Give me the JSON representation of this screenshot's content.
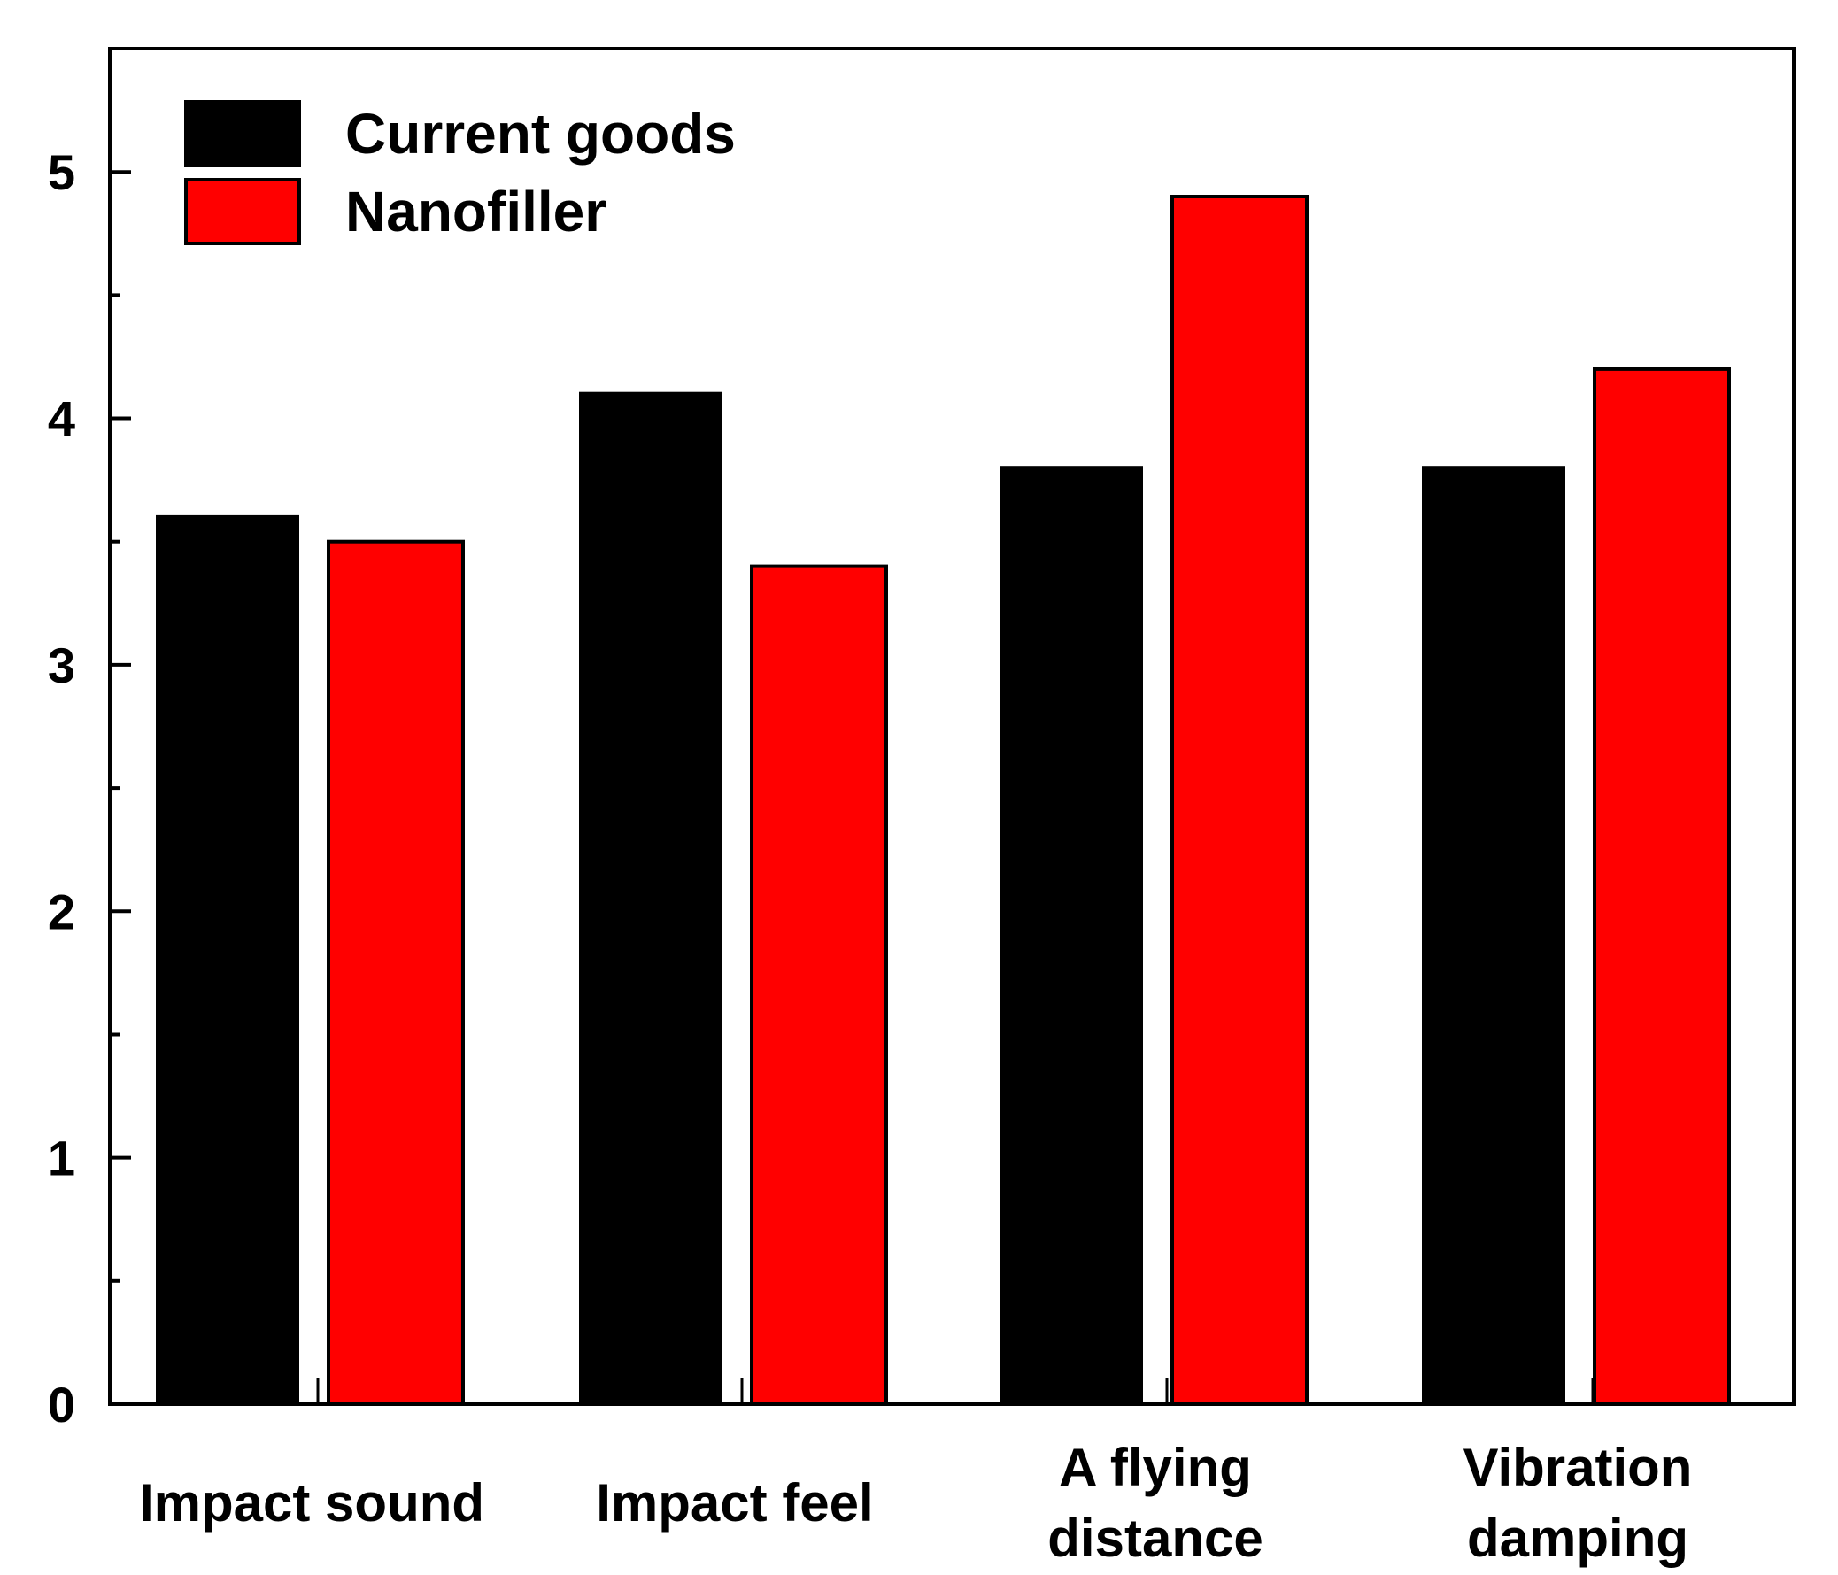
{
  "chart_data": {
    "type": "bar",
    "title": "",
    "xlabel": "",
    "ylabel": "",
    "categories": [
      [
        "Impact sound"
      ],
      [
        "Impact feel"
      ],
      [
        "A flying",
        "distance"
      ],
      [
        "Vibration",
        "damping"
      ]
    ],
    "series": [
      {
        "name": "Current goods",
        "color": "#000000",
        "values": [
          3.6,
          4.1,
          3.8,
          3.8
        ]
      },
      {
        "name": "Nanofiller",
        "color": "#ff0000",
        "values": [
          3.5,
          3.4,
          4.9,
          4.2
        ]
      }
    ],
    "ylim": [
      0,
      5.5
    ],
    "yticks": [
      "0",
      "1",
      "2",
      "3",
      "4",
      "5"
    ],
    "legend_position": "top-left",
    "grid": false
  }
}
